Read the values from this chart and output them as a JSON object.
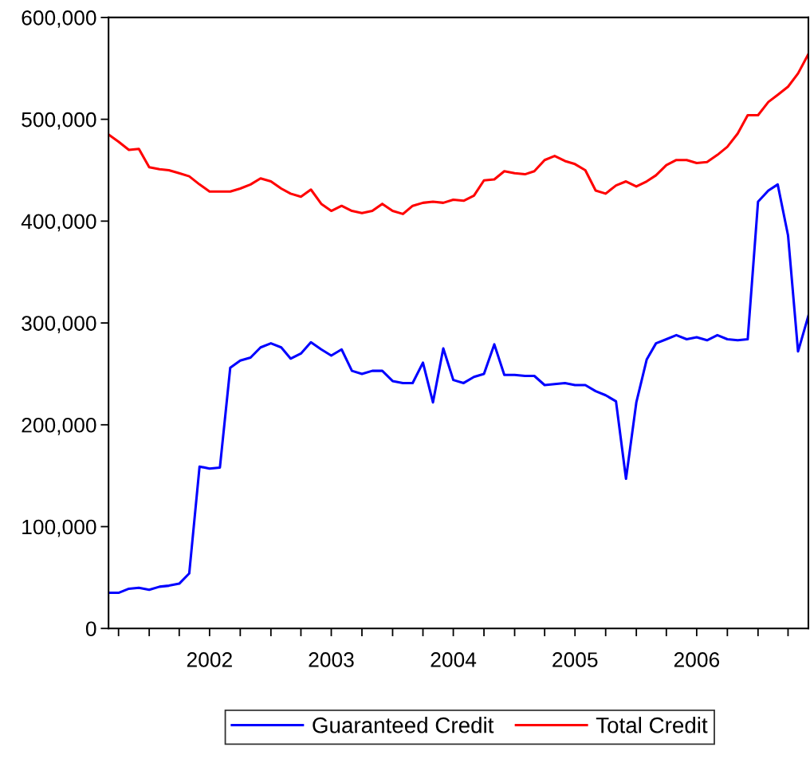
{
  "chart_data": {
    "type": "line",
    "x": [
      "2001-09",
      "2001-10",
      "2001-11",
      "2001-12",
      "2002-01",
      "2002-02",
      "2002-03",
      "2002-04",
      "2002-05",
      "2002-06",
      "2002-07",
      "2002-08",
      "2002-09",
      "2002-10",
      "2002-11",
      "2002-12",
      "2003-01",
      "2003-02",
      "2003-03",
      "2003-04",
      "2003-05",
      "2003-06",
      "2003-07",
      "2003-08",
      "2003-09",
      "2003-10",
      "2003-11",
      "2003-12",
      "2004-01",
      "2004-02",
      "2004-03",
      "2004-04",
      "2004-05",
      "2004-06",
      "2004-07",
      "2004-08",
      "2004-09",
      "2004-10",
      "2004-11",
      "2004-12",
      "2005-01",
      "2005-02",
      "2005-03",
      "2005-04",
      "2005-05",
      "2005-06",
      "2005-07",
      "2005-08",
      "2005-09",
      "2005-10",
      "2005-11",
      "2005-12",
      "2006-01",
      "2006-02",
      "2006-03",
      "2006-04",
      "2006-05",
      "2006-06",
      "2006-07",
      "2006-08",
      "2006-09",
      "2006-10",
      "2006-11",
      "2006-12",
      "2007-01",
      "2007-02",
      "2007-03",
      "2007-04",
      "2007-05",
      "2007-06"
    ],
    "series": [
      {
        "name": "Guaranteed Credit",
        "color": "#0000ff",
        "values": [
          35000,
          35000,
          39000,
          40000,
          38000,
          41000,
          42000,
          44000,
          54000,
          159000,
          157000,
          158000,
          256000,
          263000,
          266000,
          276000,
          280000,
          276000,
          265000,
          270000,
          281000,
          274000,
          268000,
          274000,
          253000,
          250000,
          253000,
          253000,
          243000,
          241000,
          241000,
          261000,
          222000,
          275000,
          244000,
          241000,
          247000,
          250000,
          279000,
          249000,
          249000,
          248000,
          248000,
          239000,
          240000,
          241000,
          239000,
          239000,
          233000,
          229000,
          223000,
          147000,
          222000,
          264000,
          280000,
          284000,
          288000,
          284000,
          286000,
          283000,
          288000,
          284000,
          283000,
          284000,
          419000,
          430000,
          436000,
          386000,
          272000,
          307000
        ]
      },
      {
        "name": "Total Credit",
        "color": "#ff0000",
        "values": [
          485000,
          478000,
          470000,
          471000,
          453000,
          451000,
          450000,
          447000,
          444000,
          436000,
          429000,
          429000,
          429000,
          432000,
          436000,
          442000,
          439000,
          432000,
          427000,
          424000,
          431000,
          417000,
          410000,
          415000,
          410000,
          408000,
          410000,
          417000,
          410000,
          407000,
          415000,
          418000,
          419000,
          418000,
          421000,
          420000,
          425000,
          440000,
          441000,
          449000,
          447000,
          446000,
          449000,
          460000,
          464000,
          459000,
          456000,
          450000,
          430000,
          427000,
          435000,
          439000,
          434000,
          439000,
          445000,
          455000,
          460000,
          460000,
          457000,
          458000,
          465000,
          473000,
          486000,
          504000,
          504000,
          517000,
          524000,
          532000,
          545000,
          564000
        ]
      }
    ],
    "xlim": [
      "2001-09",
      "2007-06"
    ],
    "xticks": [
      {
        "value": "2001-10",
        "label": null
      },
      {
        "value": "2002-01",
        "label": null
      },
      {
        "value": "2002-04",
        "label": null
      },
      {
        "value": "2002-07",
        "label": "2002"
      },
      {
        "value": "2002-10",
        "label": null
      },
      {
        "value": "2003-01",
        "label": null
      },
      {
        "value": "2003-04",
        "label": null
      },
      {
        "value": "2003-07",
        "label": "2003"
      },
      {
        "value": "2003-10",
        "label": null
      },
      {
        "value": "2004-01",
        "label": null
      },
      {
        "value": "2004-04",
        "label": null
      },
      {
        "value": "2004-07",
        "label": "2004"
      },
      {
        "value": "2004-10",
        "label": null
      },
      {
        "value": "2005-01",
        "label": null
      },
      {
        "value": "2005-04",
        "label": null
      },
      {
        "value": "2005-07",
        "label": "2005"
      },
      {
        "value": "2005-10",
        "label": null
      },
      {
        "value": "2006-01",
        "label": null
      },
      {
        "value": "2006-04",
        "label": null
      },
      {
        "value": "2006-07",
        "label": "2006"
      },
      {
        "value": "2006-10",
        "label": null
      },
      {
        "value": "2007-01",
        "label": null
      },
      {
        "value": "2007-04",
        "label": null
      }
    ],
    "ylim": [
      0,
      600000
    ],
    "yticks": [
      0,
      {
        "value": 100000,
        "label": "100,000"
      },
      {
        "value": 200000,
        "label": "200,000"
      },
      {
        "value": 300000,
        "label": "300,000"
      },
      {
        "value": 400000,
        "label": "400,000"
      },
      {
        "value": 500000,
        "label": "500,000"
      },
      {
        "value": 600000,
        "label": "600,000"
      }
    ],
    "grid": false,
    "legend": "bottom",
    "marker": "none",
    "line_style": "solid"
  }
}
